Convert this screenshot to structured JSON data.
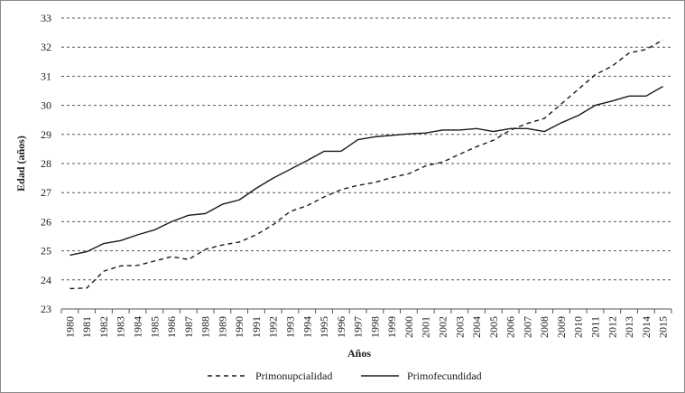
{
  "chart_data": {
    "type": "line",
    "title": "",
    "xlabel": "Años",
    "ylabel": "Edad (años)",
    "ylim": [
      23,
      33
    ],
    "yticks": [
      23,
      24,
      25,
      26,
      27,
      28,
      29,
      30,
      31,
      32,
      33
    ],
    "grid": "horizontal dashed",
    "legend_position": "bottom",
    "x": [
      1980,
      1981,
      1982,
      1983,
      1984,
      1985,
      1986,
      1987,
      1988,
      1989,
      1990,
      1991,
      1992,
      1993,
      1994,
      1995,
      1996,
      1997,
      1998,
      1999,
      2000,
      2001,
      2002,
      2003,
      2004,
      2005,
      2006,
      2007,
      2008,
      2009,
      2010,
      2011,
      2012,
      2013,
      2014,
      2015
    ],
    "series": [
      {
        "name": "Primonupcialidad",
        "style": "dashed",
        "color": "#1a1a1a",
        "values": [
          23.7,
          23.72,
          24.3,
          24.48,
          24.5,
          24.65,
          24.8,
          24.7,
          25.05,
          25.2,
          25.3,
          25.55,
          25.9,
          26.35,
          26.55,
          26.85,
          27.1,
          27.25,
          27.35,
          27.52,
          27.65,
          27.92,
          28.05,
          28.32,
          28.58,
          28.8,
          29.15,
          29.38,
          29.55,
          30.05,
          30.55,
          31.05,
          31.35,
          31.8,
          31.92,
          32.25
        ]
      },
      {
        "name": "Primofecundidad",
        "style": "solid",
        "color": "#1a1a1a",
        "values": [
          24.85,
          24.97,
          25.25,
          25.35,
          25.55,
          25.72,
          26.0,
          26.22,
          26.28,
          26.6,
          26.75,
          27.15,
          27.5,
          27.8,
          28.1,
          28.42,
          28.42,
          28.82,
          28.92,
          28.97,
          29.02,
          29.05,
          29.15,
          29.15,
          29.2,
          29.1,
          29.2,
          29.2,
          29.1,
          29.4,
          29.65,
          30.0,
          30.15,
          30.32,
          30.32,
          30.65
        ]
      }
    ]
  }
}
